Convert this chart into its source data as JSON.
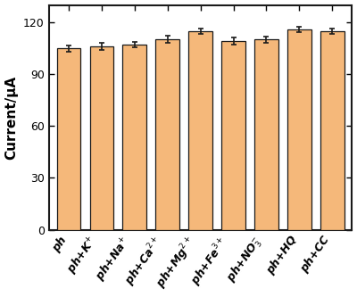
{
  "categories": [
    "ph",
    "ph+K$^{+}$",
    "ph+Na$^{+}$",
    "ph+Ca$^{2+}$",
    "ph+Mg$^{2+}$",
    "ph+Fe$^{3+}$",
    "ph+NO$_3^{-}$",
    "ph+HQ",
    "ph+CC"
  ],
  "values": [
    105,
    106,
    107,
    110,
    115,
    109,
    110,
    116,
    115
  ],
  "errors": [
    1.8,
    2.0,
    1.5,
    2.0,
    1.5,
    2.0,
    1.8,
    1.5,
    1.5
  ],
  "bar_color": "#F5B87A",
  "bar_edgecolor": "#1a1a1a",
  "ylabel": "Current/μA",
  "ylim": [
    0,
    130
  ],
  "yticks": [
    0,
    30,
    60,
    90,
    120
  ],
  "bar_width": 0.72,
  "capsize": 2.5,
  "elinewidth": 1.2,
  "ecolor": "#1a1a1a",
  "tick_fontsize": 9,
  "ylabel_fontsize": 11,
  "spine_linewidth": 1.5,
  "background_color": "#ffffff"
}
